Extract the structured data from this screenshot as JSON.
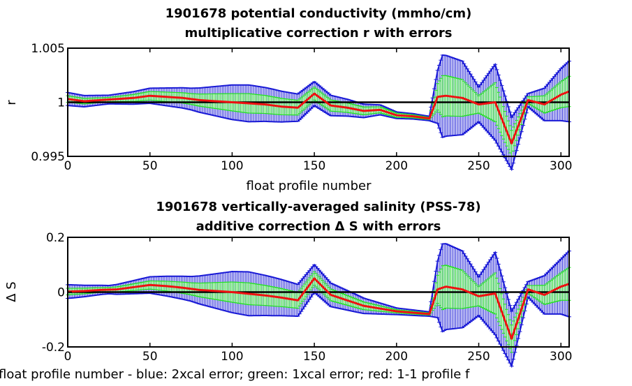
{
  "chart_data": [
    {
      "type": "line",
      "title_line1": "1901678 potential conductivity (mmho/cm)",
      "title_line2": "multiplicative correction r with errors",
      "xlabel": "float profile number",
      "ylabel": "r",
      "xlim": [
        0,
        305
      ],
      "ylim": [
        0.995,
        1.005
      ],
      "x_ticks": [
        "0",
        "50",
        "100",
        "150",
        "200",
        "250",
        "300"
      ],
      "y_ticks": [
        "0.995",
        "1",
        "1.005"
      ],
      "reference_line": 1,
      "colors": {
        "blue": "#1a1ad6",
        "green": "#22e022",
        "red": "#ee1111",
        "reference": "#000000"
      },
      "series": [
        {
          "x": [
            0,
            10,
            20,
            30,
            40,
            50,
            60,
            70,
            80,
            90,
            100,
            110,
            120,
            130,
            140,
            150,
            160,
            170,
            180,
            190,
            200,
            210,
            220,
            225,
            230,
            240,
            250,
            260,
            270,
            280,
            290,
            300,
            305
          ],
          "values": [
            1.0003,
            1.0001,
            1.0002,
            1.0003,
            1.0004,
            1.0006,
            1.0005,
            1.0004,
            1.0002,
            1.0001,
            1.0,
            0.9999,
            0.9998,
            0.9996,
            0.9995,
            1.0008,
            0.9997,
            0.9995,
            0.9992,
            0.9993,
            0.9988,
            0.9987,
            0.9985,
            1.0005,
            1.0006,
            1.0004,
            0.9998,
            1.0,
            0.9962,
            1.0002,
            0.9998,
            1.0007,
            1.001
          ]
        },
        {
          "x": [
            0,
            25,
            50,
            75,
            100,
            110,
            125,
            150,
            175,
            200,
            220,
            228,
            240,
            250,
            260,
            270,
            280,
            290,
            300,
            305
          ],
          "values": [
            0.0006,
            0.0004,
            0.0007,
            0.001,
            0.0016,
            0.0017,
            0.0015,
            0.0011,
            0.0007,
            0.0003,
            0.0002,
            0.0038,
            0.0034,
            0.0016,
            0.0035,
            0.0024,
            0.0006,
            0.0015,
            0.0024,
            0.0028
          ]
        },
        {
          "x": [
            0,
            25,
            50,
            75,
            100,
            110,
            125,
            150,
            175,
            200,
            220,
            228,
            240,
            250,
            260,
            270,
            280,
            290,
            300,
            305
          ],
          "values": [
            0.0003,
            0.0002,
            0.0004,
            0.0005,
            0.0008,
            0.0009,
            0.0008,
            0.0006,
            0.0004,
            0.0002,
            0.0001,
            0.0019,
            0.0017,
            0.0008,
            0.0018,
            0.0012,
            0.0003,
            0.0008,
            0.0012,
            0.0014
          ]
        }
      ]
    },
    {
      "type": "line",
      "title_line1": "1901678 vertically-averaged salinity (PSS-78)",
      "title_line2": "additive correction Δ S with errors",
      "xlabel": "float profile number - blue: 2xcal error; green: 1xcal error; red: 1-1 profile f",
      "ylabel": "Δ S",
      "xlim": [
        0,
        305
      ],
      "ylim": [
        -0.2,
        0.2
      ],
      "x_ticks": [
        "0",
        "50",
        "100",
        "150",
        "200",
        "250",
        "300"
      ],
      "y_ticks": [
        "-0.2",
        "0",
        "0.2"
      ],
      "reference_line": 0,
      "colors": {
        "blue": "#1a1ad6",
        "green": "#22e022",
        "red": "#ee1111",
        "reference": "#000000"
      },
      "series": [
        {
          "x": [
            0,
            10,
            20,
            30,
            40,
            50,
            60,
            70,
            80,
            90,
            100,
            110,
            120,
            130,
            140,
            150,
            160,
            170,
            180,
            190,
            200,
            210,
            220,
            225,
            230,
            240,
            250,
            260,
            270,
            280,
            290,
            300,
            305
          ],
          "values": [
            0.002,
            0.004,
            0.008,
            0.01,
            0.018,
            0.026,
            0.022,
            0.016,
            0.008,
            0.004,
            0.0,
            -0.006,
            -0.012,
            -0.02,
            -0.03,
            0.05,
            -0.01,
            -0.03,
            -0.05,
            -0.06,
            -0.07,
            -0.075,
            -0.08,
            0.01,
            0.02,
            0.01,
            -0.015,
            -0.005,
            -0.17,
            0.01,
            -0.01,
            0.02,
            0.03
          ]
        },
        {
          "x": [
            0,
            25,
            50,
            75,
            100,
            110,
            125,
            150,
            175,
            200,
            220,
            228,
            240,
            250,
            260,
            270,
            280,
            290,
            300,
            305
          ],
          "values": [
            0.025,
            0.015,
            0.03,
            0.045,
            0.075,
            0.08,
            0.07,
            0.05,
            0.032,
            0.012,
            0.008,
            0.16,
            0.14,
            0.07,
            0.15,
            0.1,
            0.028,
            0.07,
            0.1,
            0.12
          ]
        },
        {
          "x": [
            0,
            25,
            50,
            75,
            100,
            110,
            125,
            150,
            175,
            200,
            220,
            228,
            240,
            250,
            260,
            270,
            280,
            290,
            300,
            305
          ],
          "values": [
            0.012,
            0.008,
            0.015,
            0.022,
            0.037,
            0.04,
            0.035,
            0.025,
            0.016,
            0.006,
            0.004,
            0.08,
            0.07,
            0.035,
            0.075,
            0.05,
            0.014,
            0.035,
            0.05,
            0.06
          ]
        }
      ]
    }
  ]
}
